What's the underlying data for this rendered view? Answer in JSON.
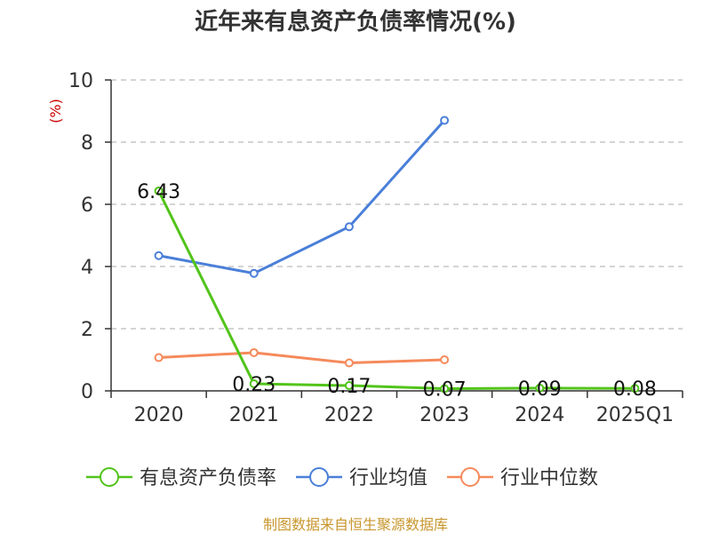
{
  "chart_data": {
    "type": "line",
    "title": "近年来有息资产负债率情况(%)",
    "ylabel": "(%)",
    "xlabel": "",
    "ylim": [
      0,
      10
    ],
    "yticks": [
      0,
      2,
      4,
      6,
      8,
      10
    ],
    "categories": [
      "2020",
      "2021",
      "2022",
      "2023",
      "2024",
      "2025Q1"
    ],
    "grid": true,
    "legend_position": "bottom",
    "series": [
      {
        "name": "有息资产负债率",
        "color": "#52c41a",
        "values": [
          6.43,
          0.23,
          0.17,
          0.07,
          0.09,
          0.08
        ],
        "labels": [
          "6.43",
          "0.23",
          "0.17",
          "0.07",
          "0.09",
          "0.08"
        ]
      },
      {
        "name": "行业均值",
        "color": "#4a7fd9",
        "values": [
          4.35,
          3.78,
          5.28,
          8.7,
          null,
          null
        ],
        "labels": []
      },
      {
        "name": "行业中位数",
        "color": "#f58a5b",
        "values": [
          1.07,
          1.23,
          0.9,
          1.0,
          null,
          null
        ],
        "labels": []
      }
    ]
  },
  "source": "制图数据来自恒生聚源数据库"
}
